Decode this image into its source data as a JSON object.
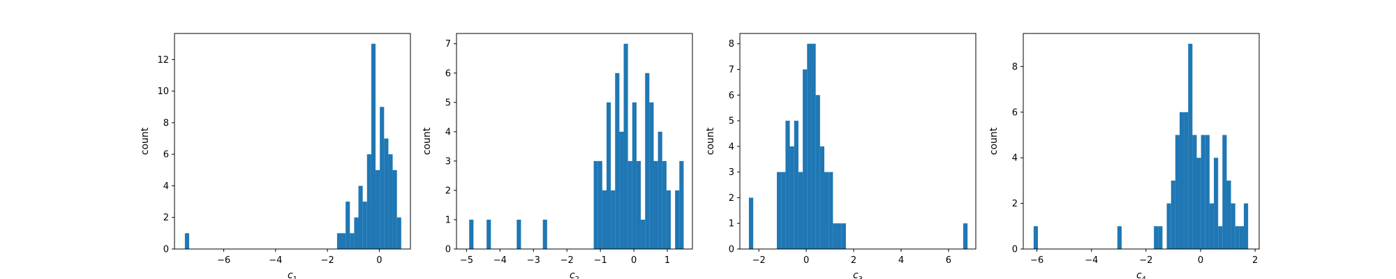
{
  "colors": {
    "bar": "#1f77b4",
    "axis": "#000000",
    "background": "#ffffff"
  },
  "chart_data": [
    {
      "type": "bar",
      "xlabel": "c",
      "xlabel_sub": "1",
      "ylabel": "count",
      "xlim": [
        -7.9,
        1.2
      ],
      "ylim": [
        0,
        13.65
      ],
      "xticks": [
        -6,
        -4,
        -2,
        0
      ],
      "xtick_labels": [
        "−6",
        "−4",
        "−2",
        "0"
      ],
      "yticks": [
        0,
        2,
        4,
        6,
        8,
        10,
        12
      ],
      "ytick_labels": [
        "0",
        "2",
        "4",
        "6",
        "8",
        "10",
        "12"
      ],
      "bin_width": 0.165,
      "bins": [
        {
          "x": -7.5,
          "count": 1
        },
        {
          "x": -1.63,
          "count": 1
        },
        {
          "x": -1.465,
          "count": 1
        },
        {
          "x": -1.3,
          "count": 3
        },
        {
          "x": -1.135,
          "count": 1
        },
        {
          "x": -0.97,
          "count": 2
        },
        {
          "x": -0.805,
          "count": 4
        },
        {
          "x": -0.64,
          "count": 3
        },
        {
          "x": -0.475,
          "count": 6
        },
        {
          "x": -0.31,
          "count": 13
        },
        {
          "x": -0.145,
          "count": 5
        },
        {
          "x": 0.02,
          "count": 9
        },
        {
          "x": 0.185,
          "count": 7
        },
        {
          "x": 0.35,
          "count": 6
        },
        {
          "x": 0.515,
          "count": 5
        },
        {
          "x": 0.68,
          "count": 2
        }
      ]
    },
    {
      "type": "bar",
      "xlabel": "c",
      "xlabel_sub": "2",
      "ylabel": "count",
      "xlim": [
        -5.3,
        1.75
      ],
      "ylim": [
        0,
        7.35
      ],
      "xticks": [
        -5,
        -4,
        -3,
        -2,
        -1,
        0,
        1
      ],
      "xtick_labels": [
        "−5",
        "−4",
        "−3",
        "−2",
        "−1",
        "0",
        "1"
      ],
      "yticks": [
        0,
        1,
        2,
        3,
        4,
        5,
        6,
        7
      ],
      "ytick_labels": [
        "0",
        "1",
        "2",
        "3",
        "4",
        "5",
        "6",
        "7"
      ],
      "bin_width": 0.128,
      "bins": [
        {
          "x": -4.92,
          "count": 1
        },
        {
          "x": -4.4,
          "count": 1
        },
        {
          "x": -3.5,
          "count": 1
        },
        {
          "x": -2.72,
          "count": 1
        },
        {
          "x": -1.2,
          "count": 3
        },
        {
          "x": -1.072,
          "count": 3
        },
        {
          "x": -0.944,
          "count": 2
        },
        {
          "x": -0.816,
          "count": 5
        },
        {
          "x": -0.688,
          "count": 2
        },
        {
          "x": -0.56,
          "count": 6
        },
        {
          "x": -0.432,
          "count": 4
        },
        {
          "x": -0.304,
          "count": 7
        },
        {
          "x": -0.176,
          "count": 3
        },
        {
          "x": -0.048,
          "count": 5
        },
        {
          "x": 0.08,
          "count": 3
        },
        {
          "x": 0.208,
          "count": 1
        },
        {
          "x": 0.336,
          "count": 6
        },
        {
          "x": 0.464,
          "count": 5
        },
        {
          "x": 0.592,
          "count": 3
        },
        {
          "x": 0.72,
          "count": 4
        },
        {
          "x": 0.848,
          "count": 3
        },
        {
          "x": 0.976,
          "count": 2
        },
        {
          "x": 1.232,
          "count": 2
        },
        {
          "x": 1.36,
          "count": 3
        }
      ]
    },
    {
      "type": "bar",
      "xlabel": "c",
      "xlabel_sub": "3",
      "ylabel": "count",
      "xlim": [
        -2.8,
        7.15
      ],
      "ylim": [
        0,
        8.4
      ],
      "xticks": [
        -2,
        0,
        2,
        4,
        6
      ],
      "xtick_labels": [
        "−2",
        "0",
        "2",
        "4",
        "6"
      ],
      "yticks": [
        0,
        1,
        2,
        3,
        4,
        5,
        6,
        7,
        8
      ],
      "ytick_labels": [
        "0",
        "1",
        "2",
        "3",
        "4",
        "5",
        "6",
        "7",
        "8"
      ],
      "bin_width": 0.182,
      "bins": [
        {
          "x": -2.42,
          "count": 2
        },
        {
          "x": -1.24,
          "count": 3
        },
        {
          "x": -1.058,
          "count": 3
        },
        {
          "x": -0.876,
          "count": 5
        },
        {
          "x": -0.694,
          "count": 4
        },
        {
          "x": -0.512,
          "count": 5
        },
        {
          "x": -0.33,
          "count": 3
        },
        {
          "x": -0.148,
          "count": 7
        },
        {
          "x": 0.034,
          "count": 8
        },
        {
          "x": 0.216,
          "count": 8
        },
        {
          "x": 0.398,
          "count": 6
        },
        {
          "x": 0.58,
          "count": 4
        },
        {
          "x": 0.762,
          "count": 3
        },
        {
          "x": 0.944,
          "count": 3
        },
        {
          "x": 1.126,
          "count": 1
        },
        {
          "x": 1.308,
          "count": 1
        },
        {
          "x": 1.49,
          "count": 1
        },
        {
          "x": 6.62,
          "count": 1
        }
      ]
    },
    {
      "type": "bar",
      "xlabel": "c",
      "xlabel_sub": "4",
      "ylabel": "count",
      "xlim": [
        -6.5,
        2.15
      ],
      "ylim": [
        0,
        9.45
      ],
      "xticks": [
        -6,
        -4,
        -2,
        0,
        2
      ],
      "xtick_labels": [
        "−6",
        "−4",
        "−2",
        "0",
        "2"
      ],
      "yticks": [
        0,
        2,
        4,
        6,
        8
      ],
      "ytick_labels": [
        "0",
        "2",
        "4",
        "6",
        "8"
      ],
      "bin_width": 0.157,
      "bins": [
        {
          "x": -6.12,
          "count": 1
        },
        {
          "x": -3.05,
          "count": 1
        },
        {
          "x": -1.71,
          "count": 1
        },
        {
          "x": -1.553,
          "count": 1
        },
        {
          "x": -1.239,
          "count": 2
        },
        {
          "x": -1.082,
          "count": 3
        },
        {
          "x": -0.925,
          "count": 5
        },
        {
          "x": -0.768,
          "count": 6
        },
        {
          "x": -0.611,
          "count": 6
        },
        {
          "x": -0.454,
          "count": 9
        },
        {
          "x": -0.297,
          "count": 5
        },
        {
          "x": -0.14,
          "count": 4
        },
        {
          "x": 0.017,
          "count": 5
        },
        {
          "x": 0.174,
          "count": 5
        },
        {
          "x": 0.331,
          "count": 2
        },
        {
          "x": 0.488,
          "count": 4
        },
        {
          "x": 0.645,
          "count": 1
        },
        {
          "x": 0.802,
          "count": 5
        },
        {
          "x": 0.959,
          "count": 3
        },
        {
          "x": 1.116,
          "count": 2
        },
        {
          "x": 1.273,
          "count": 1
        },
        {
          "x": 1.43,
          "count": 1
        },
        {
          "x": 1.587,
          "count": 2
        }
      ]
    }
  ]
}
